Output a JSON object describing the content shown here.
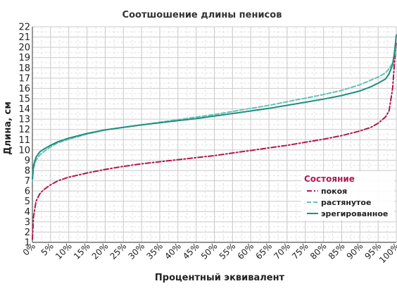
{
  "chart_data": {
    "type": "line",
    "title": "Соотшошение длины пенисов",
    "xlabel": "Процентный эквивалент",
    "ylabel": "Длина, см",
    "xlim": [
      0,
      100
    ],
    "ylim": [
      1,
      22
    ],
    "yticks": [
      1,
      2,
      3,
      4,
      5,
      6,
      7,
      8,
      9,
      10,
      11,
      12,
      13,
      14,
      15,
      16,
      17,
      18,
      19,
      20,
      21,
      22
    ],
    "xticks": [
      "0%",
      "5%",
      "10%",
      "15%",
      "20%",
      "25%",
      "30%",
      "35%",
      "40%",
      "45%",
      "50%",
      "55%",
      "60%",
      "65%",
      "70%",
      "75%",
      "80%",
      "85%",
      "90%",
      "95%",
      "100%"
    ],
    "grid": true,
    "legend": {
      "title": "Состояние",
      "placement": "bottom-right"
    },
    "x": [
      0,
      0.3,
      1,
      2,
      3,
      5,
      7,
      10,
      15,
      20,
      25,
      30,
      35,
      40,
      45,
      50,
      55,
      60,
      65,
      70,
      75,
      80,
      85,
      90,
      93,
      95,
      97,
      98,
      99,
      99.5,
      100
    ],
    "series": [
      {
        "name": "покоя",
        "color": "#b0184f",
        "dash": "dashdot",
        "values": [
          1.3,
          3.5,
          5.0,
          5.7,
          6.1,
          6.6,
          7.0,
          7.35,
          7.75,
          8.1,
          8.4,
          8.65,
          8.85,
          9.05,
          9.25,
          9.45,
          9.7,
          9.95,
          10.2,
          10.45,
          10.75,
          11.05,
          11.4,
          11.85,
          12.2,
          12.6,
          13.2,
          13.8,
          16.0,
          18.5,
          20.6
        ]
      },
      {
        "name": "растянутое",
        "color": "#66c2b8",
        "dash": "dashed",
        "values": [
          7.0,
          8.2,
          9.0,
          9.5,
          9.8,
          10.3,
          10.7,
          11.05,
          11.55,
          11.95,
          12.2,
          12.45,
          12.7,
          12.95,
          13.2,
          13.45,
          13.75,
          14.05,
          14.35,
          14.7,
          15.05,
          15.4,
          15.8,
          16.35,
          16.8,
          17.1,
          17.5,
          17.9,
          18.5,
          19.2,
          20.0
        ]
      },
      {
        "name": "эрегированное",
        "color": "#1f8f80",
        "dash": "solid",
        "values": [
          7.2,
          8.5,
          9.3,
          9.8,
          10.05,
          10.45,
          10.8,
          11.15,
          11.6,
          11.95,
          12.2,
          12.45,
          12.65,
          12.85,
          13.05,
          13.3,
          13.55,
          13.8,
          14.05,
          14.35,
          14.65,
          14.95,
          15.3,
          15.75,
          16.15,
          16.5,
          16.9,
          17.4,
          18.3,
          19.5,
          21.2
        ]
      }
    ]
  }
}
